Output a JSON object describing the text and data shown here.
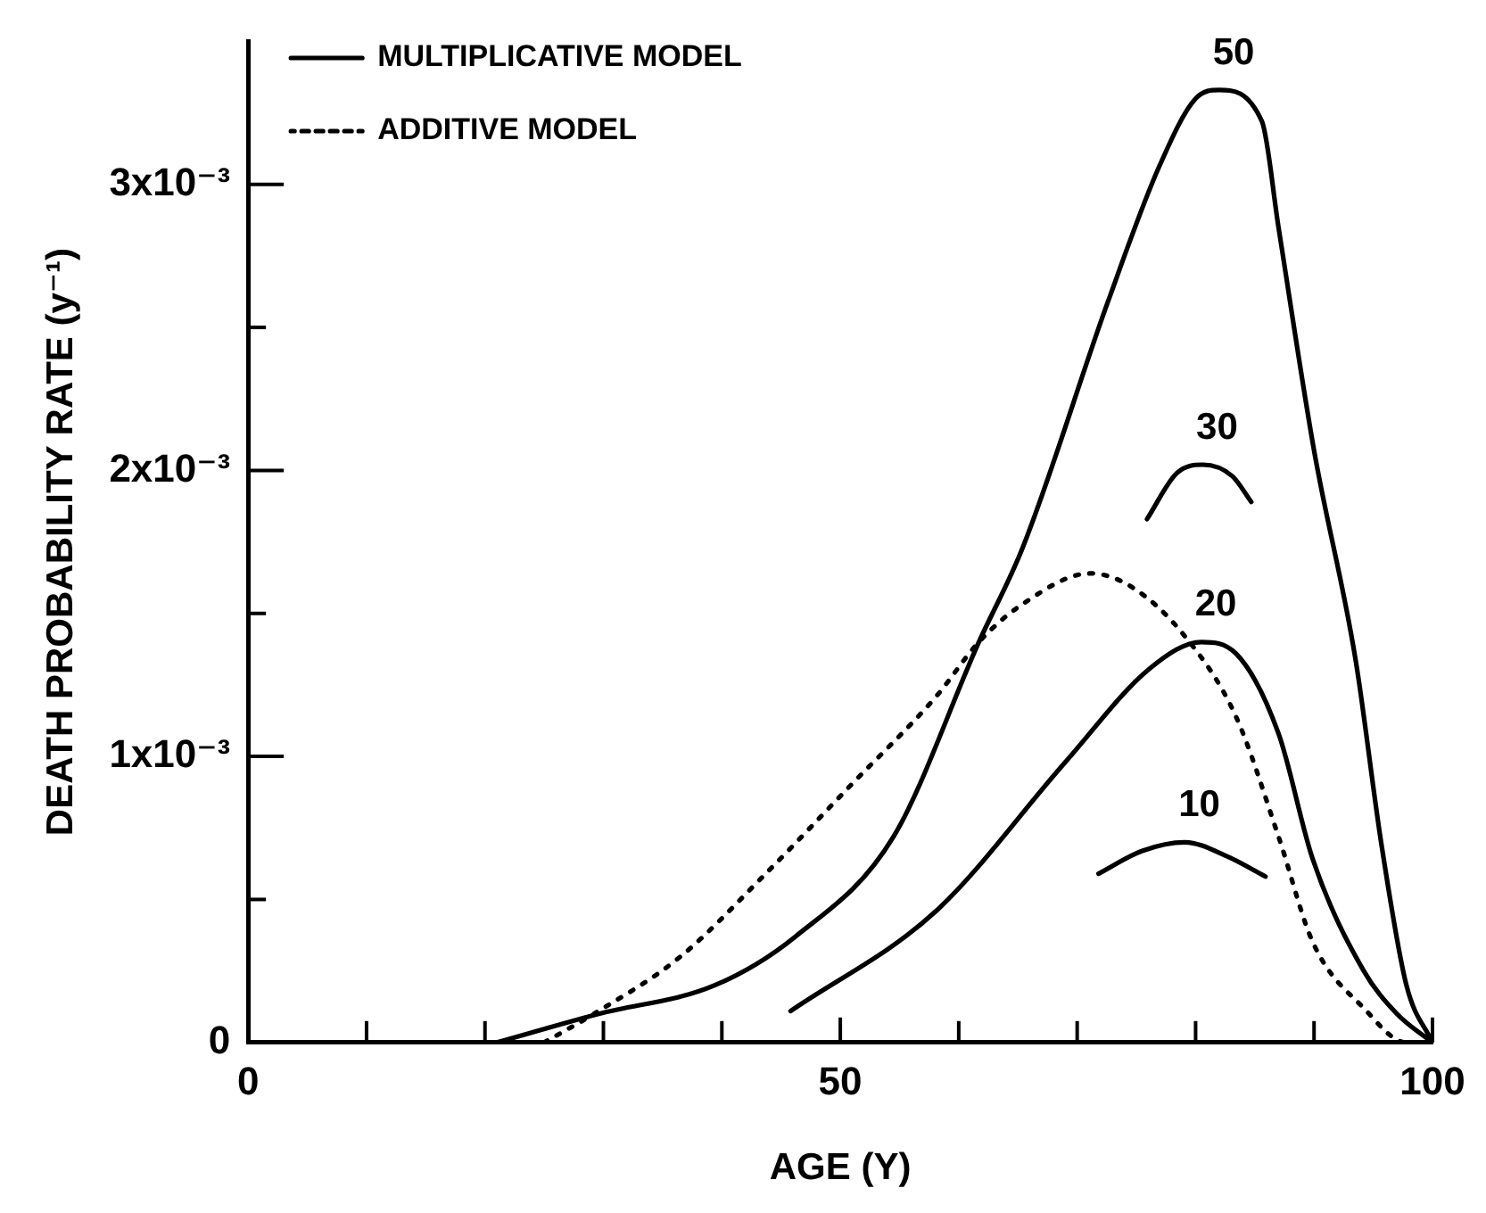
{
  "chart_data": {
    "type": "line",
    "xlabel": "AGE (Y)",
    "ylabel": "DEATH PROBABILITY RATE (y⁻¹)",
    "xlim": [
      0,
      100
    ],
    "ylim": [
      0,
      0.0035
    ],
    "xticks": [
      0,
      {
        "value": 10,
        "label": null
      },
      {
        "value": 20,
        "label": null
      },
      {
        "value": 30,
        "label": null
      },
      {
        "value": 40,
        "label": null
      },
      50,
      {
        "value": 60,
        "label": null
      },
      {
        "value": 70,
        "label": null
      },
      {
        "value": 80,
        "label": null
      },
      {
        "value": 90,
        "label": null
      },
      100
    ],
    "yticks": [
      {
        "value": 0,
        "label": "0"
      },
      {
        "value": 0.0005,
        "label": null
      },
      {
        "value": 0.001,
        "label": "1x10⁻³"
      },
      {
        "value": 0.0015,
        "label": null
      },
      {
        "value": 0.002,
        "label": "2x10⁻³"
      },
      {
        "value": 0.0025,
        "label": null
      },
      {
        "value": 0.003,
        "label": "3x10⁻³"
      }
    ],
    "grid": false,
    "legend": "top left",
    "marker": "none",
    "series": [
      {
        "name": "MULTIPLICATIVE MODEL",
        "color": "#000000",
        "line_style": "solid",
        "x": [
          21,
          29.6,
          39.4,
          46.2,
          54.5,
          61.7,
          65.4,
          72.6,
          76.9,
          80,
          82,
          85.6,
          87,
          90,
          93.5,
          95.7,
          97.8,
          100
        ],
        "values": [
          0,
          0.0001,
          0.0002,
          0.00037,
          0.00072,
          0.0014,
          0.00173,
          0.00259,
          0.00306,
          0.0033,
          0.00333,
          0.00322,
          0.00285,
          0.00207,
          0.00134,
          0.00069,
          0.0002,
          0
        ]
      },
      {
        "color": "#000000",
        "line_style": "solid",
        "x": [
          75.9,
          78.4,
          80.6,
          83.1,
          84.7
        ],
        "values": [
          0.00183,
          0.00199,
          0.00202,
          0.00198,
          0.00189
        ]
      },
      {
        "color": "#000000",
        "line_style": "solid",
        "x": [
          45.8,
          58.1,
          69,
          76.2,
          80.5,
          83.4,
          87,
          89.9,
          94.2,
          97,
          100
        ],
        "values": [
          0.00011,
          0.00046,
          0.00098,
          0.00131,
          0.0014,
          0.00136,
          0.00108,
          0.00064,
          0.00025,
          0.0001,
          0
        ]
      },
      {
        "color": "#000000",
        "line_style": "solid",
        "x": [
          71.8,
          75.5,
          79.1,
          82.7,
          85.9
        ],
        "values": [
          0.00059,
          0.00067,
          0.0007,
          0.00065,
          0.00058
        ]
      },
      {
        "name": "ADDITIVE MODEL",
        "color": "#000000",
        "line_style": "dotted",
        "x": [
          25,
          29.2,
          36.5,
          43.7,
          50.9,
          58.1,
          61.7,
          65.3,
          71.1,
          74.7,
          79.1,
          83.4,
          87,
          89.9,
          94.2,
          97.8,
          100
        ],
        "values": [
          0,
          0.0001,
          0.0003,
          0.00059,
          0.0009,
          0.00121,
          0.0014,
          0.00153,
          0.00164,
          0.00159,
          0.00142,
          0.00114,
          0.00072,
          0.00035,
          0.00012,
          0,
          0
        ]
      }
    ],
    "annotations": [
      {
        "text": "50",
        "x": 82,
        "y": 0.00333
      },
      {
        "text": "30",
        "x": 80.6,
        "y": 0.00202
      },
      {
        "text": "20",
        "x": 80.5,
        "y": 0.0014
      },
      {
        "text": "10",
        "x": 79.1,
        "y": 0.0007
      }
    ]
  }
}
